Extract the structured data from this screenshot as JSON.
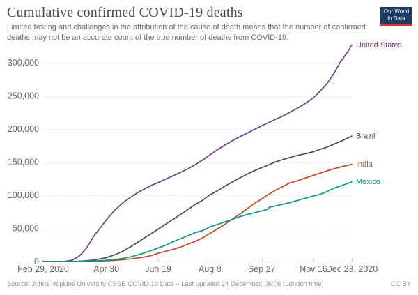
{
  "header": {
    "title": "Cumulative confirmed COVID-19 deaths",
    "subtitle": "Limited testing and challenges in the attribution of the cause of death means that the number of confirmed deaths may not be an accurate count of the true number of deaths from COVID-19.",
    "logo": {
      "line1": "Our World",
      "line2": "in Data",
      "bg_color": "#1d3d63",
      "stripe_color": "#d0342c"
    }
  },
  "footer": {
    "source": "Source: Johns Hopkins University CSSE COVID-19 Data – Last updated 24 December, 06:06 (London time)",
    "license": "CC BY"
  },
  "chart_data": {
    "type": "line",
    "title": "Cumulative confirmed COVID-19 deaths",
    "xlabel": "",
    "ylabel": "",
    "grid": true,
    "legend_position": "end-of-line-labels",
    "ylim": [
      0,
      300000
    ],
    "x_max_day": 298,
    "y_ticks": [
      {
        "value": 0,
        "label": "0"
      },
      {
        "value": 50000,
        "label": "50,000"
      },
      {
        "value": 100000,
        "label": "100,000"
      },
      {
        "value": 150000,
        "label": "150,000"
      },
      {
        "value": 200000,
        "label": "200,000"
      },
      {
        "value": 250000,
        "label": "250,000"
      },
      {
        "value": 300000,
        "label": "300,000"
      }
    ],
    "x_ticks": [
      {
        "day": 0,
        "label": "Feb 29, 2020"
      },
      {
        "day": 61,
        "label": "Apr 30"
      },
      {
        "day": 111,
        "label": "Jun 19"
      },
      {
        "day": 161,
        "label": "Aug 8"
      },
      {
        "day": 211,
        "label": "Sep 27"
      },
      {
        "day": 261,
        "label": "Nov 16"
      },
      {
        "day": 298,
        "label": "Dec 23, 2020"
      }
    ],
    "series": [
      {
        "name": "United States",
        "color": "#6d3e91",
        "points": [
          [
            0,
            1
          ],
          [
            7,
            19
          ],
          [
            14,
            57
          ],
          [
            21,
            301
          ],
          [
            28,
            2010
          ],
          [
            35,
            8400
          ],
          [
            42,
            20460
          ],
          [
            49,
            38700
          ],
          [
            56,
            52500
          ],
          [
            61,
            63000
          ],
          [
            70,
            78800
          ],
          [
            77,
            88750
          ],
          [
            84,
            96600
          ],
          [
            91,
            103800
          ],
          [
            98,
            109800
          ],
          [
            105,
            115400
          ],
          [
            111,
            119200
          ],
          [
            119,
            125000
          ],
          [
            126,
            129800
          ],
          [
            133,
            134800
          ],
          [
            140,
            140100
          ],
          [
            147,
            146300
          ],
          [
            154,
            153300
          ],
          [
            161,
            160900
          ],
          [
            168,
            168400
          ],
          [
            175,
            175400
          ],
          [
            182,
            181800
          ],
          [
            189,
            187700
          ],
          [
            196,
            193000
          ],
          [
            203,
            198600
          ],
          [
            211,
            204800
          ],
          [
            217,
            209400
          ],
          [
            224,
            214300
          ],
          [
            231,
            219300
          ],
          [
            238,
            225200
          ],
          [
            245,
            230900
          ],
          [
            252,
            237500
          ],
          [
            261,
            247200
          ],
          [
            266,
            255000
          ],
          [
            273,
            266500
          ],
          [
            280,
            282000
          ],
          [
            287,
            301000
          ],
          [
            294,
            316500
          ],
          [
            298,
            327000
          ]
        ]
      },
      {
        "name": "Brazil",
        "color": "#3c4e66",
        "points": [
          [
            0,
            0
          ],
          [
            14,
            0
          ],
          [
            21,
            25
          ],
          [
            28,
            111
          ],
          [
            35,
            445
          ],
          [
            42,
            1124
          ],
          [
            49,
            2354
          ],
          [
            56,
            4205
          ],
          [
            61,
            5901
          ],
          [
            70,
            10627
          ],
          [
            77,
            15633
          ],
          [
            84,
            22013
          ],
          [
            91,
            28834
          ],
          [
            98,
            35930
          ],
          [
            105,
            42720
          ],
          [
            111,
            48954
          ],
          [
            119,
            57070
          ],
          [
            126,
            64265
          ],
          [
            133,
            71469
          ],
          [
            140,
            78772
          ],
          [
            147,
            86449
          ],
          [
            154,
            92568
          ],
          [
            161,
            100477
          ],
          [
            168,
            106523
          ],
          [
            175,
            113358
          ],
          [
            182,
            119504
          ],
          [
            189,
            125502
          ],
          [
            196,
            131210
          ],
          [
            203,
            136532
          ],
          [
            211,
            141741
          ],
          [
            217,
            145388
          ],
          [
            224,
            150198
          ],
          [
            231,
            153675
          ],
          [
            238,
            156903
          ],
          [
            245,
            159884
          ],
          [
            252,
            162269
          ],
          [
            261,
            165798
          ],
          [
            266,
            168613
          ],
          [
            273,
            171974
          ],
          [
            280,
            176628
          ],
          [
            287,
            181123
          ],
          [
            294,
            186356
          ],
          [
            298,
            189220
          ]
        ]
      },
      {
        "name": "India",
        "color": "#c2472a",
        "points": [
          [
            0,
            0
          ],
          [
            14,
            1
          ],
          [
            21,
            4
          ],
          [
            28,
            24
          ],
          [
            35,
            99
          ],
          [
            42,
            288
          ],
          [
            49,
            559
          ],
          [
            56,
            824
          ],
          [
            61,
            1154
          ],
          [
            70,
            1985
          ],
          [
            77,
            2753
          ],
          [
            84,
            3868
          ],
          [
            91,
            5164
          ],
          [
            98,
            6929
          ],
          [
            105,
            9195
          ],
          [
            111,
            12573
          ],
          [
            119,
            15685
          ],
          [
            126,
            18655
          ],
          [
            133,
            22123
          ],
          [
            140,
            26273
          ],
          [
            147,
            30601
          ],
          [
            154,
            35747
          ],
          [
            161,
            42518
          ],
          [
            168,
            49036
          ],
          [
            175,
            55794
          ],
          [
            182,
            63498
          ],
          [
            189,
            70626
          ],
          [
            196,
            78586
          ],
          [
            203,
            86752
          ],
          [
            211,
            94503
          ],
          [
            217,
            100842
          ],
          [
            224,
            107416
          ],
          [
            231,
            112998
          ],
          [
            238,
            118534
          ],
          [
            245,
            121641
          ],
          [
            252,
            125562
          ],
          [
            261,
            130070
          ],
          [
            266,
            132726
          ],
          [
            273,
            136200
          ],
          [
            280,
            139700
          ],
          [
            287,
            142628
          ],
          [
            294,
            145136
          ],
          [
            298,
            146756
          ]
        ]
      },
      {
        "name": "Mexico",
        "color": "#0e9688",
        "points": [
          [
            0,
            0
          ],
          [
            21,
            2
          ],
          [
            28,
            16
          ],
          [
            35,
            94
          ],
          [
            42,
            273
          ],
          [
            49,
            650
          ],
          [
            56,
            1351
          ],
          [
            61,
            1859
          ],
          [
            70,
            3160
          ],
          [
            77,
            4767
          ],
          [
            84,
            6989
          ],
          [
            91,
            9779
          ],
          [
            98,
            13170
          ],
          [
            105,
            16872
          ],
          [
            111,
            20394
          ],
          [
            119,
            25060
          ],
          [
            126,
            30366
          ],
          [
            133,
            34730
          ],
          [
            140,
            39184
          ],
          [
            147,
            43680
          ],
          [
            154,
            46688
          ],
          [
            161,
            52298
          ],
          [
            168,
            55908
          ],
          [
            175,
            59610
          ],
          [
            182,
            63146
          ],
          [
            189,
            67326
          ],
          [
            196,
            70604
          ],
          [
            203,
            73258
          ],
          [
            211,
            76430
          ],
          [
            217,
            78880
          ],
          [
            218,
            81877
          ],
          [
            224,
            83781
          ],
          [
            231,
            86167
          ],
          [
            238,
            88743
          ],
          [
            245,
            91895
          ],
          [
            252,
            95027
          ],
          [
            261,
            98861
          ],
          [
            266,
            100823
          ],
          [
            273,
            104873
          ],
          [
            280,
            110074
          ],
          [
            287,
            113953
          ],
          [
            294,
            117876
          ],
          [
            298,
            120311
          ]
        ]
      }
    ]
  }
}
